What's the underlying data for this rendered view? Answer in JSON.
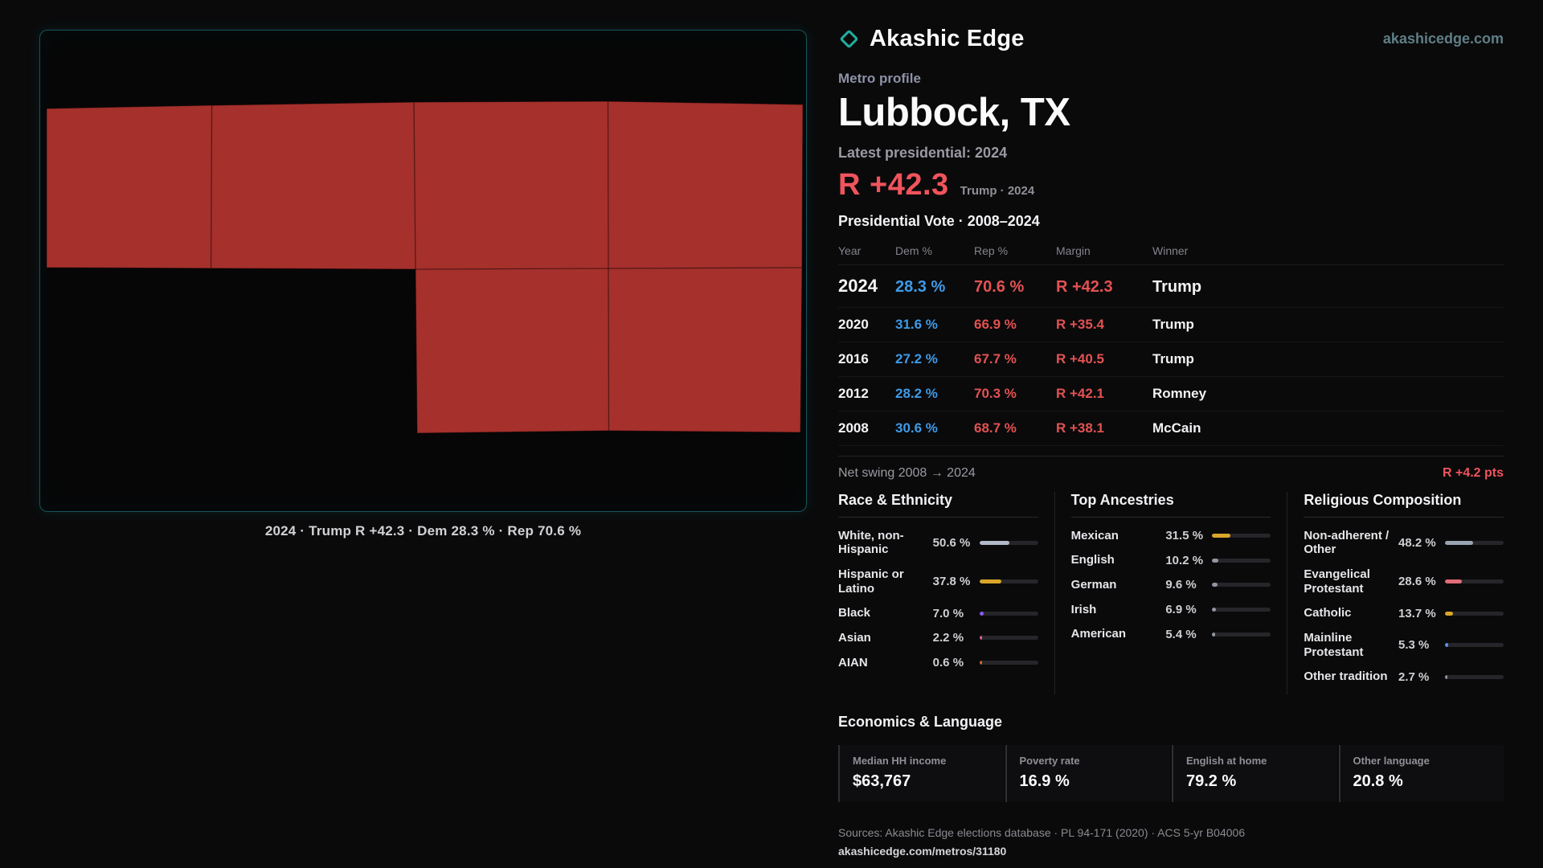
{
  "brand": {
    "name": "Akashic Edge",
    "domain": "akashicedge.com"
  },
  "profile": {
    "kicker": "Metro profile",
    "title": "Lubbock, TX",
    "latest_label": "Latest presidential: 2024",
    "headline_margin": "R +42.3",
    "headline_context": "Trump · 2024"
  },
  "map": {
    "caption": "2024 · Trump R +42.3 · Dem 28.3 % · Rep 70.6 %",
    "fill_color": "#a5302c"
  },
  "vote_table": {
    "title": "Presidential Vote · 2008–2024",
    "columns": [
      "Year",
      "Dem %",
      "Rep %",
      "Margin",
      "Winner"
    ],
    "rows": [
      {
        "year": "2024",
        "dem": "28.3 %",
        "rep": "70.6 %",
        "margin": "R +42.3",
        "winner": "Trump"
      },
      {
        "year": "2020",
        "dem": "31.6 %",
        "rep": "66.9 %",
        "margin": "R +35.4",
        "winner": "Trump"
      },
      {
        "year": "2016",
        "dem": "27.2 %",
        "rep": "67.7 %",
        "margin": "R +40.5",
        "winner": "Trump"
      },
      {
        "year": "2012",
        "dem": "28.2 %",
        "rep": "70.3 %",
        "margin": "R +42.1",
        "winner": "Romney"
      },
      {
        "year": "2008",
        "dem": "30.6 %",
        "rep": "68.7 %",
        "margin": "R +38.1",
        "winner": "McCain"
      }
    ]
  },
  "net_swing": {
    "label": "Net swing 2008 → 2024",
    "value": "R +4.2 pts"
  },
  "demographics": {
    "groups": [
      {
        "title": "Race & Ethnicity",
        "items": [
          {
            "label": "White, non-Hispanic",
            "value": "50.6 %",
            "pct": 50.6,
            "color": "#b2bac9"
          },
          {
            "label": "Hispanic or Latino",
            "value": "37.8 %",
            "pct": 37.8,
            "color": "#d9a62a"
          },
          {
            "label": "Black",
            "value": "7.0 %",
            "pct": 7.0,
            "color": "#8b5cf6"
          },
          {
            "label": "Asian",
            "value": "2.2 %",
            "pct": 2.2,
            "color": "#de5a9c"
          },
          {
            "label": "AIAN",
            "value": "0.6 %",
            "pct": 0.6,
            "color": "#d2622e"
          }
        ]
      },
      {
        "title": "Top Ancestries",
        "items": [
          {
            "label": "Mexican",
            "value": "31.5 %",
            "pct": 31.5,
            "color": "#d9a62a"
          },
          {
            "label": "English",
            "value": "10.2 %",
            "pct": 10.2,
            "color": "#9097a1"
          },
          {
            "label": "German",
            "value": "9.6 %",
            "pct": 9.6,
            "color": "#9097a1"
          },
          {
            "label": "Irish",
            "value": "6.9 %",
            "pct": 6.9,
            "color": "#9097a1"
          },
          {
            "label": "American",
            "value": "5.4 %",
            "pct": 5.4,
            "color": "#9097a1"
          }
        ]
      },
      {
        "title": "Religious Composition",
        "items": [
          {
            "label": "Non-adherent / Other",
            "value": "48.2 %",
            "pct": 48.2,
            "color": "#9aa3b2"
          },
          {
            "label": "Evangelical Protestant",
            "value": "28.6 %",
            "pct": 28.6,
            "color": "#e06c75"
          },
          {
            "label": "Catholic",
            "value": "13.7 %",
            "pct": 13.7,
            "color": "#d9a62a"
          },
          {
            "label": "Mainline Protestant",
            "value": "5.3 %",
            "pct": 5.3,
            "color": "#5b8def"
          },
          {
            "label": "Other tradition",
            "value": "2.7 %",
            "pct": 2.7,
            "color": "#9097a1"
          }
        ]
      }
    ]
  },
  "economics": {
    "title": "Economics & Language",
    "stats": [
      {
        "label": "Median HH income",
        "value": "$63,767"
      },
      {
        "label": "Poverty rate",
        "value": "16.9 %"
      },
      {
        "label": "English at home",
        "value": "79.2 %"
      },
      {
        "label": "Other language",
        "value": "20.8 %"
      }
    ]
  },
  "footer": {
    "sources": "Sources: Akashic Edge elections database · PL 94-171 (2020) · ACS 5-yr B04006",
    "link": "akashicedge.com/metros/31180"
  }
}
